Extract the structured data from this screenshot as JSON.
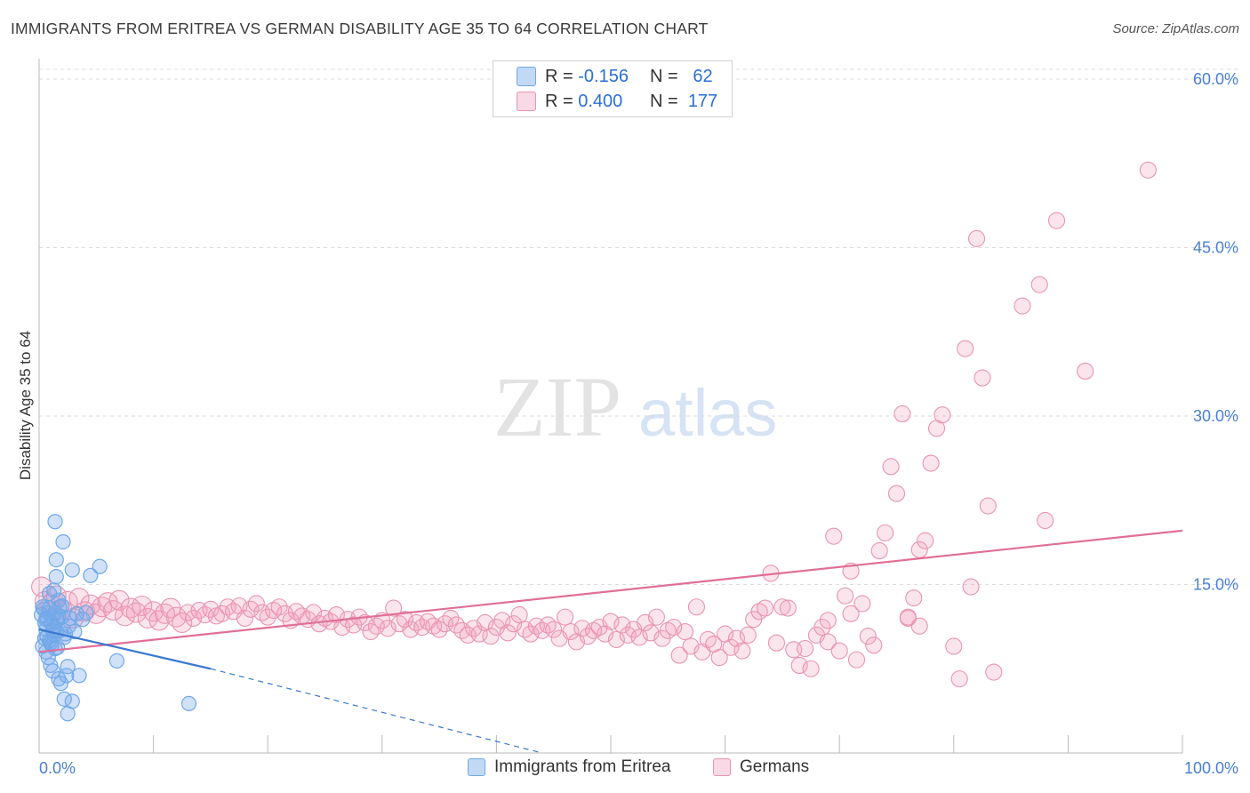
{
  "title": "IMMIGRANTS FROM ERITREA VS GERMAN DISABILITY AGE 35 TO 64 CORRELATION CHART",
  "source": "Source: ZipAtlas.com",
  "watermark": {
    "zip": "ZIP",
    "atlas": "atlas"
  },
  "colors": {
    "blue": "#6fa8e8",
    "blue_fill": "rgba(120,170,235,0.35)",
    "blue_line": "#3b78d0",
    "pink": "#e993b0",
    "pink_fill": "rgba(240,160,190,0.28)",
    "pink_line": "#e06f98",
    "grid": "#dddddd",
    "tick_label": "#4a7fd4"
  },
  "legend": {
    "rows": [
      {
        "r_label": "R = ",
        "r_value": "-0.156",
        "n_label": "N = ",
        "n_value": "62",
        "series": "blue"
      },
      {
        "r_label": "R = ",
        "r_value": "0.400",
        "n_label": "N = ",
        "n_value": "177",
        "series": "pink"
      }
    ]
  },
  "bottom_legend": [
    {
      "label": "Immigrants from Eritrea",
      "series": "blue"
    },
    {
      "label": "Germans",
      "series": "pink"
    }
  ],
  "chart_data": {
    "type": "scatter",
    "title": "IMMIGRANTS FROM ERITREA VS GERMAN DISABILITY AGE 35 TO 64 CORRELATION CHART",
    "ylabel": "Disability Age 35 to 64",
    "xlabel": "",
    "x_tick_labels": [
      "0.0%",
      "100.0%"
    ],
    "y_tick_labels": [
      "15.0%",
      "30.0%",
      "45.0%",
      "60.0%"
    ],
    "y_ticks": [
      15,
      30,
      45,
      60
    ],
    "xlim": [
      0,
      100
    ],
    "ylim": [
      0,
      61.5
    ],
    "grid": "horizontal dashed",
    "legend_position": "top-center",
    "series": [
      {
        "name": "Immigrants from Eritrea",
        "color": "blue",
        "trend": {
          "x0": 0,
          "y0": 11.0,
          "x1": 15,
          "y1": 7.5,
          "dash_to_x": 44,
          "dash_to_y": 0
        },
        "points": [
          [
            0.3,
            9.5
          ],
          [
            0.5,
            10.2
          ],
          [
            0.6,
            11.0
          ],
          [
            0.7,
            12.0
          ],
          [
            0.8,
            12.5
          ],
          [
            0.9,
            10.0
          ],
          [
            1.0,
            9.8
          ],
          [
            1.1,
            11.5
          ],
          [
            1.2,
            12.0
          ],
          [
            1.3,
            10.5
          ],
          [
            0.4,
            12.8
          ],
          [
            0.6,
            9.0
          ],
          [
            0.8,
            8.5
          ],
          [
            1.0,
            7.8
          ],
          [
            1.2,
            7.3
          ],
          [
            1.4,
            9.3
          ],
          [
            1.5,
            10.8
          ],
          [
            1.6,
            11.8
          ],
          [
            1.7,
            12.2
          ],
          [
            1.8,
            13.0
          ],
          [
            0.5,
            11.6
          ],
          [
            0.7,
            10.4
          ],
          [
            0.9,
            12.9
          ],
          [
            1.1,
            9.6
          ],
          [
            1.3,
            11.2
          ],
          [
            1.4,
            12.5
          ],
          [
            1.6,
            9.4
          ],
          [
            1.8,
            10.9
          ],
          [
            2.0,
            12.1
          ],
          [
            2.2,
            10.3
          ],
          [
            1.4,
            20.6
          ],
          [
            1.5,
            17.2
          ],
          [
            1.5,
            15.7
          ],
          [
            1.3,
            14.5
          ],
          [
            2.1,
            18.8
          ],
          [
            2.9,
            16.3
          ],
          [
            5.3,
            16.6
          ],
          [
            4.5,
            15.8
          ],
          [
            4.1,
            12.5
          ],
          [
            3.8,
            11.9
          ],
          [
            2.0,
            13.1
          ],
          [
            2.3,
            10.6
          ],
          [
            2.5,
            7.7
          ],
          [
            2.4,
            6.9
          ],
          [
            1.7,
            6.6
          ],
          [
            1.9,
            6.2
          ],
          [
            2.2,
            4.8
          ],
          [
            2.9,
            4.6
          ],
          [
            2.5,
            3.5
          ],
          [
            3.5,
            6.9
          ],
          [
            6.8,
            8.2
          ],
          [
            13.1,
            4.4
          ],
          [
            2.7,
            12.0
          ],
          [
            3.1,
            10.8
          ],
          [
            0.2,
            12.3
          ],
          [
            0.3,
            13.0
          ],
          [
            0.9,
            14.2
          ],
          [
            1.7,
            13.6
          ],
          [
            3.3,
            12.4
          ],
          [
            1.2,
            10.9
          ],
          [
            0.6,
            11.9
          ],
          [
            2.6,
            11.3
          ]
        ]
      },
      {
        "name": "Germans",
        "color": "pink",
        "trend": {
          "x0": 0,
          "y0": 9.0,
          "x1": 100,
          "y1": 19.8
        },
        "points": [
          [
            0.2,
            14.8
          ],
          [
            0.5,
            13.5
          ],
          [
            1.0,
            13.2
          ],
          [
            1.5,
            14.0
          ],
          [
            2.0,
            12.8
          ],
          [
            2.5,
            13.5
          ],
          [
            3.0,
            12.0
          ],
          [
            3.5,
            13.8
          ],
          [
            4.0,
            12.6
          ],
          [
            4.5,
            13.2
          ],
          [
            5.0,
            12.4
          ],
          [
            5.5,
            13.0
          ],
          [
            6.0,
            13.4
          ],
          [
            6.5,
            12.7
          ],
          [
            7.0,
            13.6
          ],
          [
            7.5,
            12.2
          ],
          [
            8.0,
            12.9
          ],
          [
            8.5,
            12.5
          ],
          [
            9.0,
            13.1
          ],
          [
            9.5,
            12.0
          ],
          [
            10.0,
            12.6
          ],
          [
            10.5,
            11.8
          ],
          [
            11.0,
            12.4
          ],
          [
            11.5,
            12.9
          ],
          [
            12.0,
            12.1
          ],
          [
            12.5,
            11.6
          ],
          [
            13.0,
            12.5
          ],
          [
            13.5,
            12.0
          ],
          [
            14.0,
            12.7
          ],
          [
            14.5,
            12.3
          ],
          [
            15.0,
            12.8
          ],
          [
            15.5,
            12.2
          ],
          [
            16.0,
            12.4
          ],
          [
            16.5,
            13.0
          ],
          [
            17.0,
            12.6
          ],
          [
            17.5,
            13.1
          ],
          [
            18.0,
            12.0
          ],
          [
            18.5,
            12.8
          ],
          [
            19.0,
            13.3
          ],
          [
            19.5,
            12.5
          ],
          [
            20.0,
            12.1
          ],
          [
            20.5,
            12.7
          ],
          [
            21.0,
            13.0
          ],
          [
            21.5,
            12.4
          ],
          [
            22.0,
            11.8
          ],
          [
            22.5,
            12.6
          ],
          [
            23.0,
            12.2
          ],
          [
            23.5,
            11.9
          ],
          [
            24.0,
            12.5
          ],
          [
            24.5,
            11.5
          ],
          [
            25.0,
            12.0
          ],
          [
            25.5,
            11.7
          ],
          [
            26.0,
            12.3
          ],
          [
            26.5,
            11.2
          ],
          [
            27.0,
            11.9
          ],
          [
            27.5,
            11.4
          ],
          [
            28.0,
            12.1
          ],
          [
            28.5,
            11.6
          ],
          [
            29.0,
            10.8
          ],
          [
            29.5,
            11.3
          ],
          [
            30.0,
            11.8
          ],
          [
            30.5,
            11.1
          ],
          [
            31.0,
            12.9
          ],
          [
            31.5,
            11.5
          ],
          [
            32.0,
            11.9
          ],
          [
            32.5,
            11.0
          ],
          [
            33.0,
            11.6
          ],
          [
            33.5,
            11.2
          ],
          [
            34.0,
            11.7
          ],
          [
            34.5,
            11.3
          ],
          [
            35.0,
            11.0
          ],
          [
            35.5,
            11.5
          ],
          [
            36.0,
            12.0
          ],
          [
            36.5,
            11.4
          ],
          [
            37.0,
            10.9
          ],
          [
            37.5,
            10.5
          ],
          [
            38.0,
            11.1
          ],
          [
            38.5,
            10.6
          ],
          [
            39.0,
            11.6
          ],
          [
            39.5,
            10.4
          ],
          [
            40.0,
            11.2
          ],
          [
            40.5,
            11.8
          ],
          [
            41.0,
            10.7
          ],
          [
            41.5,
            11.5
          ],
          [
            42.0,
            12.3
          ],
          [
            42.5,
            11.0
          ],
          [
            43.0,
            10.6
          ],
          [
            43.5,
            11.3
          ],
          [
            44.0,
            10.9
          ],
          [
            44.5,
            11.4
          ],
          [
            45.0,
            11.0
          ],
          [
            45.5,
            10.2
          ],
          [
            46.0,
            12.1
          ],
          [
            46.5,
            10.8
          ],
          [
            47.0,
            9.9
          ],
          [
            47.5,
            11.1
          ],
          [
            48.0,
            10.4
          ],
          [
            48.5,
            10.9
          ],
          [
            49.0,
            11.2
          ],
          [
            49.5,
            10.6
          ],
          [
            50.0,
            11.7
          ],
          [
            50.5,
            10.1
          ],
          [
            51.0,
            11.4
          ],
          [
            51.5,
            10.5
          ],
          [
            52.0,
            11.0
          ],
          [
            52.5,
            10.3
          ],
          [
            53.0,
            11.6
          ],
          [
            53.5,
            10.7
          ],
          [
            54.0,
            12.1
          ],
          [
            54.5,
            10.2
          ],
          [
            55.0,
            10.9
          ],
          [
            55.5,
            11.2
          ],
          [
            56.0,
            8.7
          ],
          [
            56.5,
            10.8
          ],
          [
            57.0,
            9.5
          ],
          [
            57.5,
            13.0
          ],
          [
            58.0,
            9.0
          ],
          [
            58.5,
            10.1
          ],
          [
            59.0,
            9.7
          ],
          [
            59.5,
            8.5
          ],
          [
            60.0,
            10.6
          ],
          [
            60.5,
            9.4
          ],
          [
            61.0,
            10.2
          ],
          [
            61.5,
            9.1
          ],
          [
            62.0,
            10.5
          ],
          [
            62.5,
            11.9
          ],
          [
            63.0,
            12.6
          ],
          [
            63.5,
            12.9
          ],
          [
            64.0,
            16.0
          ],
          [
            64.5,
            9.8
          ],
          [
            65.0,
            13.0
          ],
          [
            65.5,
            12.9
          ],
          [
            66.0,
            9.2
          ],
          [
            66.5,
            7.8
          ],
          [
            67.0,
            9.3
          ],
          [
            67.5,
            7.5
          ],
          [
            68.0,
            10.5
          ],
          [
            68.5,
            11.2
          ],
          [
            69.0,
            9.9
          ],
          [
            69.5,
            19.3
          ],
          [
            70.0,
            9.1
          ],
          [
            70.5,
            14.0
          ],
          [
            71.0,
            16.2
          ],
          [
            71.5,
            8.3
          ],
          [
            72.0,
            13.3
          ],
          [
            72.5,
            10.4
          ],
          [
            73.0,
            9.6
          ],
          [
            73.5,
            18.0
          ],
          [
            74.0,
            19.6
          ],
          [
            74.5,
            25.5
          ],
          [
            75.0,
            23.1
          ],
          [
            75.5,
            30.2
          ],
          [
            76.0,
            12.0
          ],
          [
            76.5,
            13.8
          ],
          [
            77.0,
            18.1
          ],
          [
            77.5,
            18.9
          ],
          [
            78.0,
            25.8
          ],
          [
            78.5,
            28.9
          ],
          [
            79.0,
            30.1
          ],
          [
            80.0,
            9.5
          ],
          [
            80.5,
            6.6
          ],
          [
            81.0,
            36.0
          ],
          [
            81.5,
            14.8
          ],
          [
            82.0,
            45.8
          ],
          [
            82.5,
            33.4
          ],
          [
            83.5,
            7.2
          ],
          [
            83.0,
            22.0
          ],
          [
            86.0,
            39.8
          ],
          [
            87.5,
            41.7
          ],
          [
            88.0,
            20.7
          ],
          [
            89.0,
            47.4
          ],
          [
            91.5,
            34.0
          ],
          [
            97.0,
            51.9
          ],
          [
            76.0,
            12.1
          ],
          [
            77.0,
            11.3
          ],
          [
            69.0,
            11.8
          ],
          [
            71.0,
            12.4
          ]
        ]
      }
    ]
  }
}
